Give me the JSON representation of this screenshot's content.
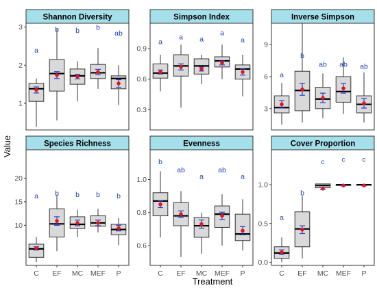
{
  "chart_data": {
    "type": "boxplot",
    "xlabel": "Treatment",
    "ylabel": "Value",
    "categories": [
      "C",
      "EF",
      "MC",
      "MEF",
      "P"
    ],
    "colors": {
      "strip_fill": "#a5dfea",
      "box_fill": "#d9d9d9",
      "box_line": "#333333",
      "median_line": "#000000",
      "mean_point": "#e8141c",
      "error_bar": "#2a3ccc",
      "letters": "#1f3fbf",
      "panel_border": "#333333"
    },
    "panels": [
      {
        "title": "Shannon Diversity",
        "ylim": [
          0.3,
          3.1
        ],
        "yticks": [
          1,
          2,
          3
        ],
        "boxes": [
          {
            "cat": "C",
            "low": 0.38,
            "q1": 1.05,
            "median": 1.38,
            "q3": 1.52,
            "high": 1.65
          },
          {
            "cat": "EF",
            "low": 0.55,
            "q1": 1.32,
            "median": 1.78,
            "q3": 2.15,
            "high": 2.95
          },
          {
            "cat": "MC",
            "low": 1.05,
            "q1": 1.5,
            "median": 1.72,
            "q3": 1.9,
            "high": 2.1
          },
          {
            "cat": "MEF",
            "low": 1.38,
            "q1": 1.65,
            "median": 1.8,
            "q3": 2.02,
            "high": 2.45
          },
          {
            "cat": "P",
            "low": 0.95,
            "q1": 1.38,
            "median": 1.65,
            "q3": 1.72,
            "high": 2.0
          }
        ],
        "means": [
          {
            "cat": "C",
            "mean": 1.35,
            "se": 0.08
          },
          {
            "cat": "EF",
            "mean": 1.74,
            "se": 0.09
          },
          {
            "cat": "MC",
            "mean": 1.7,
            "se": 0.06
          },
          {
            "cat": "MEF",
            "mean": 1.82,
            "se": 0.07
          },
          {
            "cat": "P",
            "mean": 1.52,
            "se": 0.1
          }
        ],
        "letters": [
          {
            "cat": "C",
            "label": "a",
            "y": 2.4
          },
          {
            "cat": "EF",
            "label": "b",
            "y": 2.95
          },
          {
            "cat": "MC",
            "label": "b",
            "y": 2.92
          },
          {
            "cat": "MEF",
            "label": "b",
            "y": 3.0
          },
          {
            "cat": "P",
            "label": "ab",
            "y": 2.85
          }
        ]
      },
      {
        "title": "Simpson Index",
        "ylim": [
          0.1,
          1.15
        ],
        "yticks": [
          0.3,
          0.6,
          0.9
        ],
        "boxes": [
          {
            "cat": "C",
            "low": 0.48,
            "q1": 0.61,
            "median": 0.66,
            "q3": 0.75,
            "high": 0.84
          },
          {
            "cat": "EF",
            "low": 0.32,
            "q1": 0.63,
            "median": 0.73,
            "q3": 0.84,
            "high": 0.94
          },
          {
            "cat": "MC",
            "low": 0.55,
            "q1": 0.65,
            "median": 0.73,
            "q3": 0.8,
            "high": 0.84
          },
          {
            "cat": "MEF",
            "low": 0.6,
            "q1": 0.72,
            "median": 0.78,
            "q3": 0.82,
            "high": 0.94
          },
          {
            "cat": "P",
            "low": 0.43,
            "q1": 0.6,
            "median": 0.7,
            "q3": 0.74,
            "high": 0.84
          }
        ],
        "means": [
          {
            "cat": "C",
            "mean": 0.67,
            "se": 0.02
          },
          {
            "cat": "EF",
            "mean": 0.72,
            "se": 0.03
          },
          {
            "cat": "MC",
            "mean": 0.7,
            "se": 0.02
          },
          {
            "cat": "MEF",
            "mean": 0.76,
            "se": 0.02
          },
          {
            "cat": "P",
            "mean": 0.67,
            "se": 0.03
          }
        ],
        "letters": [
          {
            "cat": "C",
            "label": "a",
            "y": 0.97
          },
          {
            "cat": "EF",
            "label": "a",
            "y": 1.02
          },
          {
            "cat": "MC",
            "label": "a",
            "y": 1.0
          },
          {
            "cat": "MEF",
            "label": "a",
            "y": 1.06
          },
          {
            "cat": "P",
            "label": "a",
            "y": 0.99
          }
        ]
      },
      {
        "title": "Inverse Simpson",
        "ylim": [
          1.0,
          11.0
        ],
        "yticks": [
          3,
          6,
          9
        ],
        "boxes": [
          {
            "cat": "C",
            "low": 1.5,
            "q1": 2.6,
            "median": 3.1,
            "q3": 4.2,
            "high": 5.4
          },
          {
            "cat": "EF",
            "low": 1.7,
            "q1": 2.8,
            "median": 4.7,
            "q3": 6.5,
            "high": 11.0
          },
          {
            "cat": "MC",
            "low": 2.1,
            "q1": 3.0,
            "median": 3.9,
            "q3": 5.0,
            "high": 6.3
          },
          {
            "cat": "MEF",
            "low": 2.5,
            "q1": 3.6,
            "median": 4.6,
            "q3": 6.0,
            "high": 7.8
          },
          {
            "cat": "P",
            "low": 1.7,
            "q1": 2.6,
            "median": 3.4,
            "q3": 4.2,
            "high": 6.4
          }
        ],
        "means": [
          {
            "cat": "C",
            "mean": 3.4,
            "se": 0.35
          },
          {
            "cat": "EF",
            "mean": 4.8,
            "se": 0.55
          },
          {
            "cat": "MC",
            "mean": 4.0,
            "se": 0.45
          },
          {
            "cat": "MEF",
            "mean": 4.9,
            "se": 0.45
          },
          {
            "cat": "P",
            "mean": 3.5,
            "se": 0.45
          }
        ],
        "letters": [
          {
            "cat": "C",
            "label": "a",
            "y": 6.2
          },
          {
            "cat": "EF",
            "label": "b",
            "y": 8.0
          },
          {
            "cat": "MC",
            "label": "ab",
            "y": 7.2
          },
          {
            "cat": "MEF",
            "label": "ab",
            "y": 7.2
          },
          {
            "cat": "P",
            "label": "ab",
            "y": 7.0
          }
        ]
      },
      {
        "title": "Species Richness",
        "ylim": [
          1.5,
          26
        ],
        "yticks": [
          10,
          15,
          20
        ],
        "boxes": [
          {
            "cat": "C",
            "low": 2.2,
            "q1": 3.2,
            "median": 5.0,
            "q3": 6.0,
            "high": 7.5
          },
          {
            "cat": "EF",
            "low": 4.5,
            "q1": 7.5,
            "median": 10.3,
            "q3": 13.5,
            "high": 16.5
          },
          {
            "cat": "MC",
            "low": 7.5,
            "q1": 9.3,
            "median": 10.2,
            "q3": 11.8,
            "high": 13.3
          },
          {
            "cat": "MEF",
            "low": 8.5,
            "q1": 9.8,
            "median": 10.5,
            "q3": 12.0,
            "high": 13.5
          },
          {
            "cat": "P",
            "low": 5.8,
            "q1": 8.0,
            "median": 9.1,
            "q3": 10.2,
            "high": 11.5
          }
        ],
        "means": [
          {
            "cat": "C",
            "mean": 5.1,
            "se": 0.35
          },
          {
            "cat": "EF",
            "mean": 10.9,
            "se": 0.9
          },
          {
            "cat": "MC",
            "mean": 10.5,
            "se": 0.6
          },
          {
            "cat": "MEF",
            "mean": 10.5,
            "se": 0.6
          },
          {
            "cat": "P",
            "mean": 9.4,
            "se": 0.6
          }
        ],
        "letters": [
          {
            "cat": "C",
            "label": "a",
            "y": 16.3
          },
          {
            "cat": "EF",
            "label": "b",
            "y": 16.9
          },
          {
            "cat": "MC",
            "label": "b",
            "y": 16.6
          },
          {
            "cat": "MEF",
            "label": "b",
            "y": 16.6
          },
          {
            "cat": "P",
            "label": "b",
            "y": 16.3
          }
        ]
      },
      {
        "title": "Evenness",
        "ylim": [
          0.48,
          1.18
        ],
        "yticks": [
          0.6,
          0.8,
          1.0
        ],
        "boxes": [
          {
            "cat": "C",
            "low": 0.65,
            "q1": 0.78,
            "median": 0.87,
            "q3": 0.92,
            "high": 1.05
          },
          {
            "cat": "EF",
            "low": 0.53,
            "q1": 0.72,
            "median": 0.78,
            "q3": 0.86,
            "high": 0.93
          },
          {
            "cat": "MC",
            "low": 0.55,
            "q1": 0.65,
            "median": 0.72,
            "q3": 0.77,
            "high": 0.8
          },
          {
            "cat": "MEF",
            "low": 0.6,
            "q1": 0.71,
            "median": 0.79,
            "q3": 0.84,
            "high": 0.91
          },
          {
            "cat": "P",
            "low": 0.57,
            "q1": 0.63,
            "median": 0.67,
            "q3": 0.79,
            "high": 0.88
          }
        ],
        "means": [
          {
            "cat": "C",
            "mean": 0.85,
            "se": 0.02
          },
          {
            "cat": "EF",
            "mean": 0.79,
            "se": 0.02
          },
          {
            "cat": "MC",
            "mean": 0.73,
            "se": 0.025
          },
          {
            "cat": "MEF",
            "mean": 0.78,
            "se": 0.022
          },
          {
            "cat": "P",
            "mean": 0.69,
            "se": 0.025
          }
        ],
        "letters": [
          {
            "cat": "C",
            "label": "b",
            "y": 1.11
          },
          {
            "cat": "EF",
            "label": "ab",
            "y": 1.06
          },
          {
            "cat": "MC",
            "label": "a",
            "y": 1.02
          },
          {
            "cat": "MEF",
            "label": "ab",
            "y": 1.06
          },
          {
            "cat": "P",
            "label": "a",
            "y": 1.02
          }
        ]
      },
      {
        "title": "Cover Proportion",
        "ylim": [
          -0.04,
          1.45
        ],
        "yticks": [
          0.0,
          0.5,
          1.0
        ],
        "boxes": [
          {
            "cat": "C",
            "low": 0.0,
            "q1": 0.05,
            "median": 0.12,
            "q3": 0.2,
            "high": 0.32
          },
          {
            "cat": "EF",
            "low": 0.05,
            "q1": 0.2,
            "median": 0.43,
            "q3": 0.65,
            "high": 0.86
          },
          {
            "cat": "MC",
            "low": 0.93,
            "q1": 0.96,
            "median": 0.99,
            "q3": 1.01,
            "high": 1.01
          },
          {
            "cat": "MEF",
            "low": 0.98,
            "q1": 0.99,
            "median": 1.0,
            "q3": 1.0,
            "high": 1.0
          },
          {
            "cat": "P",
            "low": 0.99,
            "q1": 1.0,
            "median": 1.0,
            "q3": 1.0,
            "high": 1.0
          }
        ],
        "means": [
          {
            "cat": "C",
            "mean": 0.13,
            "se": 0.03
          },
          {
            "cat": "EF",
            "mean": 0.42,
            "se": 0.05
          },
          {
            "cat": "MC",
            "mean": 0.95,
            "se": 0.012
          },
          {
            "cat": "MEF",
            "mean": 0.99,
            "se": 0.005
          },
          {
            "cat": "P",
            "mean": 0.99,
            "se": 0.004
          }
        ],
        "letters": [
          {
            "cat": "C",
            "label": "a",
            "y": 0.58
          },
          {
            "cat": "EF",
            "label": "b",
            "y": 0.9
          },
          {
            "cat": "MC",
            "label": "c",
            "y": 1.3
          },
          {
            "cat": "MEF",
            "label": "c",
            "y": 1.33
          },
          {
            "cat": "P",
            "label": "c",
            "y": 1.33
          }
        ]
      }
    ]
  }
}
